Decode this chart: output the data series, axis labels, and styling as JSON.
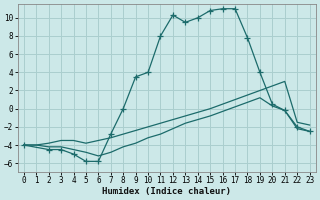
{
  "xlabel": "Humidex (Indice chaleur)",
  "background_color": "#cce8e8",
  "grid_color": "#aacece",
  "line_color": "#1c6b6b",
  "xlim": [
    -0.5,
    23.5
  ],
  "ylim": [
    -7.0,
    11.5
  ],
  "x_ticks": [
    0,
    1,
    2,
    3,
    4,
    5,
    6,
    7,
    8,
    9,
    10,
    11,
    12,
    13,
    14,
    15,
    16,
    17,
    18,
    19,
    20,
    21,
    22,
    23
  ],
  "y_ticks": [
    -6,
    -4,
    -2,
    0,
    2,
    4,
    6,
    8,
    10
  ],
  "series": [
    {
      "name": "line1_no_marker",
      "x": [
        0,
        1,
        2,
        3,
        4,
        5,
        6,
        7,
        8,
        9,
        10,
        11,
        12,
        13,
        14,
        15,
        16,
        17,
        18,
        19,
        20,
        21,
        22,
        23
      ],
      "y": [
        -4,
        -4,
        -3.8,
        -3.5,
        -3.5,
        -3.8,
        -3.5,
        -3.2,
        -2.8,
        -2.4,
        -2.0,
        -1.6,
        -1.2,
        -0.8,
        -0.4,
        0.0,
        0.5,
        1.0,
        1.5,
        2.0,
        2.5,
        3.0,
        -1.5,
        -1.8
      ],
      "marker": false
    },
    {
      "name": "line2_no_marker",
      "x": [
        0,
        1,
        2,
        3,
        4,
        5,
        6,
        7,
        8,
        9,
        10,
        11,
        12,
        13,
        14,
        15,
        16,
        17,
        18,
        19,
        20,
        21,
        22,
        23
      ],
      "y": [
        -4,
        -4,
        -4.2,
        -4.2,
        -4.5,
        -4.8,
        -5.2,
        -4.8,
        -4.2,
        -3.8,
        -3.2,
        -2.8,
        -2.2,
        -1.6,
        -1.2,
        -0.8,
        -0.3,
        0.2,
        0.7,
        1.2,
        0.3,
        -0.2,
        -2.2,
        -2.5
      ],
      "marker": false
    },
    {
      "name": "main_curve_with_markers",
      "x": [
        0,
        2,
        3,
        4,
        5,
        6,
        7,
        8,
        9,
        10,
        11,
        12,
        13,
        14,
        15,
        16,
        17,
        18,
        19,
        20,
        21,
        22,
        23
      ],
      "y": [
        -4,
        -4.5,
        -4.5,
        -5.0,
        -5.8,
        -5.8,
        -2.8,
        0.0,
        3.5,
        4.0,
        8.0,
        10.3,
        9.5,
        10.0,
        10.8,
        11.0,
        11.0,
        7.8,
        4.0,
        0.5,
        -0.2,
        -2.0,
        -2.5
      ],
      "marker": true
    }
  ]
}
